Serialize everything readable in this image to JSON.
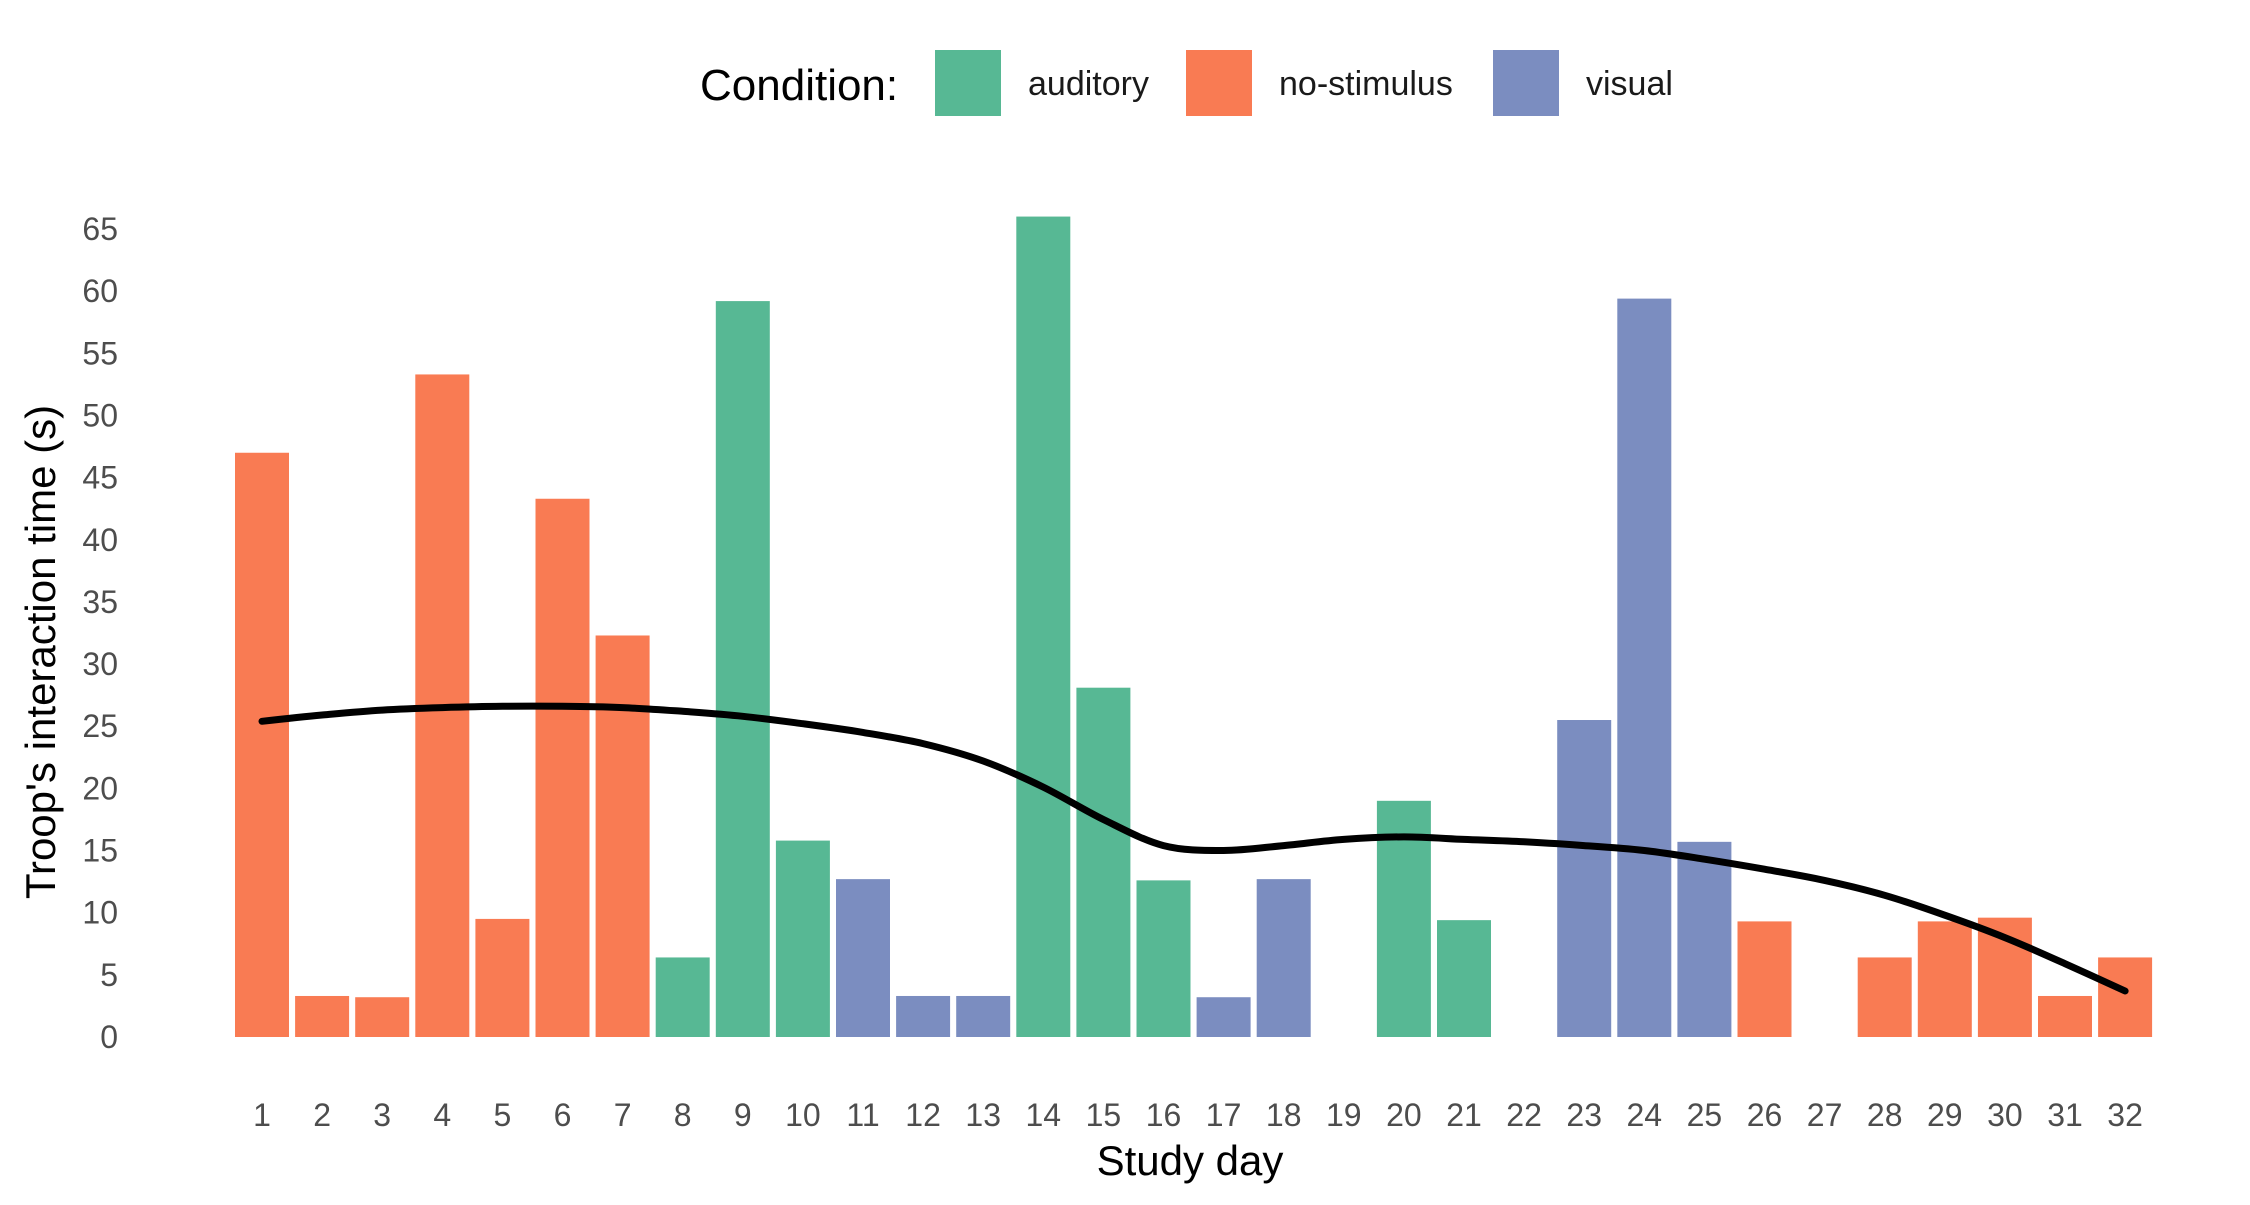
{
  "chart_data": {
    "type": "bar",
    "xlabel": "Study day",
    "ylabel": "Troop's interaction time (s)",
    "ylim": [
      0,
      65
    ],
    "yticks": [
      0,
      5,
      10,
      15,
      20,
      25,
      30,
      35,
      40,
      45,
      50,
      55,
      60,
      65
    ],
    "grid": false,
    "legend": {
      "title": "Condition:",
      "position": "top",
      "items": [
        {
          "label": "auditory",
          "color": "#57B894"
        },
        {
          "label": "no-stimulus",
          "color": "#F97B53"
        },
        {
          "label": "visual",
          "color": "#7B8DC0"
        }
      ]
    },
    "categories": [
      "1",
      "2",
      "3",
      "4",
      "5",
      "6",
      "7",
      "8",
      "9",
      "10",
      "11",
      "12",
      "13",
      "14",
      "15",
      "16",
      "17",
      "18",
      "19",
      "20",
      "21",
      "22",
      "23",
      "24",
      "25",
      "26",
      "27",
      "28",
      "29",
      "30",
      "31",
      "32"
    ],
    "values": [
      47,
      3.3,
      3.2,
      53.3,
      9.5,
      43.3,
      32.3,
      6.4,
      59.2,
      15.8,
      12.7,
      3.3,
      3.3,
      66,
      28.1,
      12.6,
      3.2,
      12.7,
      null,
      19,
      9.4,
      null,
      25.5,
      59.4,
      15.7,
      9.3,
      null,
      6.4,
      9.3,
      9.6,
      3.3,
      6.4
    ],
    "conditions": [
      "no-stimulus",
      "no-stimulus",
      "no-stimulus",
      "no-stimulus",
      "no-stimulus",
      "no-stimulus",
      "no-stimulus",
      "auditory",
      "auditory",
      "auditory",
      "visual",
      "visual",
      "visual",
      "auditory",
      "auditory",
      "auditory",
      "visual",
      "visual",
      null,
      "auditory",
      "auditory",
      null,
      "visual",
      "visual",
      "visual",
      "no-stimulus",
      null,
      "no-stimulus",
      "no-stimulus",
      "no-stimulus",
      "no-stimulus",
      "no-stimulus"
    ],
    "trend_line": {
      "color": "#000000",
      "x": [
        1,
        2,
        3,
        4,
        5,
        6,
        7,
        8,
        9,
        10,
        11,
        12,
        13,
        14,
        15,
        16,
        17,
        18,
        19,
        20,
        21,
        22,
        23,
        24,
        25,
        26,
        27,
        28,
        29,
        30,
        31,
        32
      ],
      "y": [
        25.4,
        25.9,
        26.3,
        26.5,
        26.6,
        26.6,
        26.5,
        26.2,
        25.8,
        25.2,
        24.5,
        23.6,
        22.2,
        20.1,
        17.5,
        15.4,
        15.0,
        15.4,
        15.9,
        16.1,
        15.9,
        15.7,
        15.4,
        15.0,
        14.3,
        13.5,
        12.6,
        11.4,
        9.8,
        8.0,
        5.9,
        3.7
      ]
    }
  }
}
